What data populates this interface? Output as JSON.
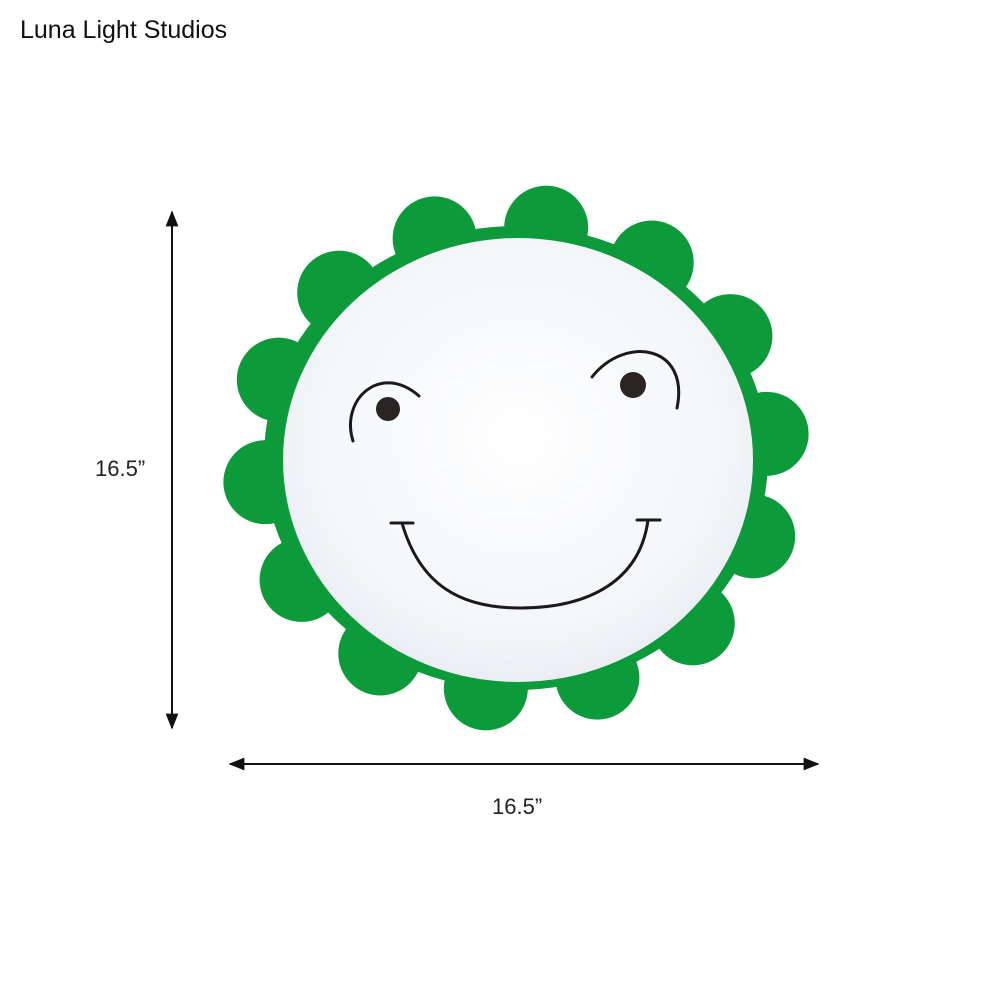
{
  "brand": "Luna Light Studios",
  "product": {
    "height_label": "16.5”",
    "width_label": "16.5”",
    "colors": {
      "petals": "#0c9a3a",
      "shade": "#ffffff",
      "face_lines": "#1a1a1a"
    },
    "icon": "smiling-flower-ceiling-light"
  }
}
